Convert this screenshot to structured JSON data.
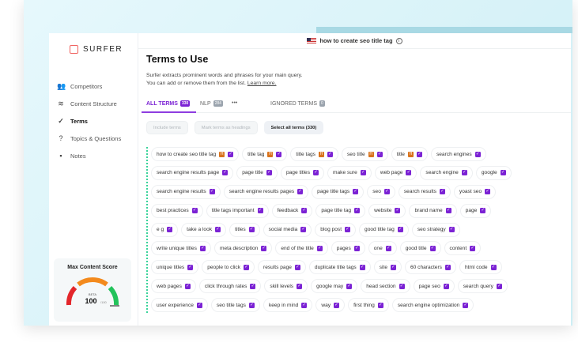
{
  "brand": "SURFER",
  "query": "how to create seo title tag",
  "sidebar": {
    "items": [
      {
        "label": "Competitors",
        "icon": "users-icon"
      },
      {
        "label": "Content Structure",
        "icon": "layers-icon"
      },
      {
        "label": "Terms",
        "icon": "check-circle-icon",
        "active": true
      },
      {
        "label": "Topics & Questions",
        "icon": "question-icon"
      },
      {
        "label": "Notes",
        "icon": "chat-icon"
      }
    ]
  },
  "score": {
    "title": "Max Content Score",
    "badge": "BETA",
    "value": "100",
    "max": "/100",
    "fraction": 1.0
  },
  "page": {
    "title": "Terms to Use",
    "desc1": "Surfer extracts prominent words and phrases for your main query.",
    "desc2": "You can add or remove them from the list.",
    "learn_more": "Learn more."
  },
  "tabs": [
    {
      "label": "ALL TERMS",
      "count": "330"
    },
    {
      "label": "NLP",
      "count": "284"
    },
    {
      "label": "•••"
    },
    {
      "label": "IGNORED TERMS",
      "count": "0"
    }
  ],
  "buttons": {
    "include": "Include terms",
    "headings": "Mark terms as headings",
    "select_all": "Select all terms (330)"
  },
  "terms": [
    {
      "t": "how to create seo title tag",
      "h": true
    },
    {
      "t": "title tag",
      "h": true
    },
    {
      "t": "title tags",
      "h": true
    },
    {
      "t": "seo title",
      "h": true
    },
    {
      "t": "title",
      "h": true
    },
    {
      "t": "search engines"
    },
    {
      "t": "search engine results page"
    },
    {
      "t": "page title"
    },
    {
      "t": "page titles"
    },
    {
      "t": "make sure"
    },
    {
      "t": "web page"
    },
    {
      "t": "search engine"
    },
    {
      "t": "google"
    },
    {
      "t": "search engine results"
    },
    {
      "t": "search engine results pages"
    },
    {
      "t": "page title tags"
    },
    {
      "t": "seo"
    },
    {
      "t": "search results"
    },
    {
      "t": "yoast seo"
    },
    {
      "t": "best practices"
    },
    {
      "t": "title tags important"
    },
    {
      "t": "feedback"
    },
    {
      "t": "page title tag"
    },
    {
      "t": "website"
    },
    {
      "t": "brand name"
    },
    {
      "t": "page"
    },
    {
      "t": "e g"
    },
    {
      "t": "take a look"
    },
    {
      "t": "titles"
    },
    {
      "t": "social media"
    },
    {
      "t": "blog post"
    },
    {
      "t": "good title tag"
    },
    {
      "t": "seo strategy"
    },
    {
      "t": "write unique titles"
    },
    {
      "t": "meta description"
    },
    {
      "t": "end of the title"
    },
    {
      "t": "pages"
    },
    {
      "t": "one"
    },
    {
      "t": "good title"
    },
    {
      "t": "content"
    },
    {
      "t": "unique titles"
    },
    {
      "t": "people to click"
    },
    {
      "t": "results page"
    },
    {
      "t": "duplicate title tags"
    },
    {
      "t": "site"
    },
    {
      "t": "60 characters"
    },
    {
      "t": "html code"
    },
    {
      "t": "web pages"
    },
    {
      "t": "click through rates"
    },
    {
      "t": "skill levels"
    },
    {
      "t": "google may"
    },
    {
      "t": "head section"
    },
    {
      "t": "page seo"
    },
    {
      "t": "search query"
    },
    {
      "t": "user experience"
    },
    {
      "t": "seo title tags"
    },
    {
      "t": "keep in mind"
    },
    {
      "t": "way"
    },
    {
      "t": "first thing"
    },
    {
      "t": "search engine optimization"
    }
  ],
  "labels": {
    "heading_marker": "H",
    "check": "✓"
  },
  "colors": {
    "accent": "#7b22d4",
    "heading": "#d9731c",
    "guide": "#39d39a"
  }
}
